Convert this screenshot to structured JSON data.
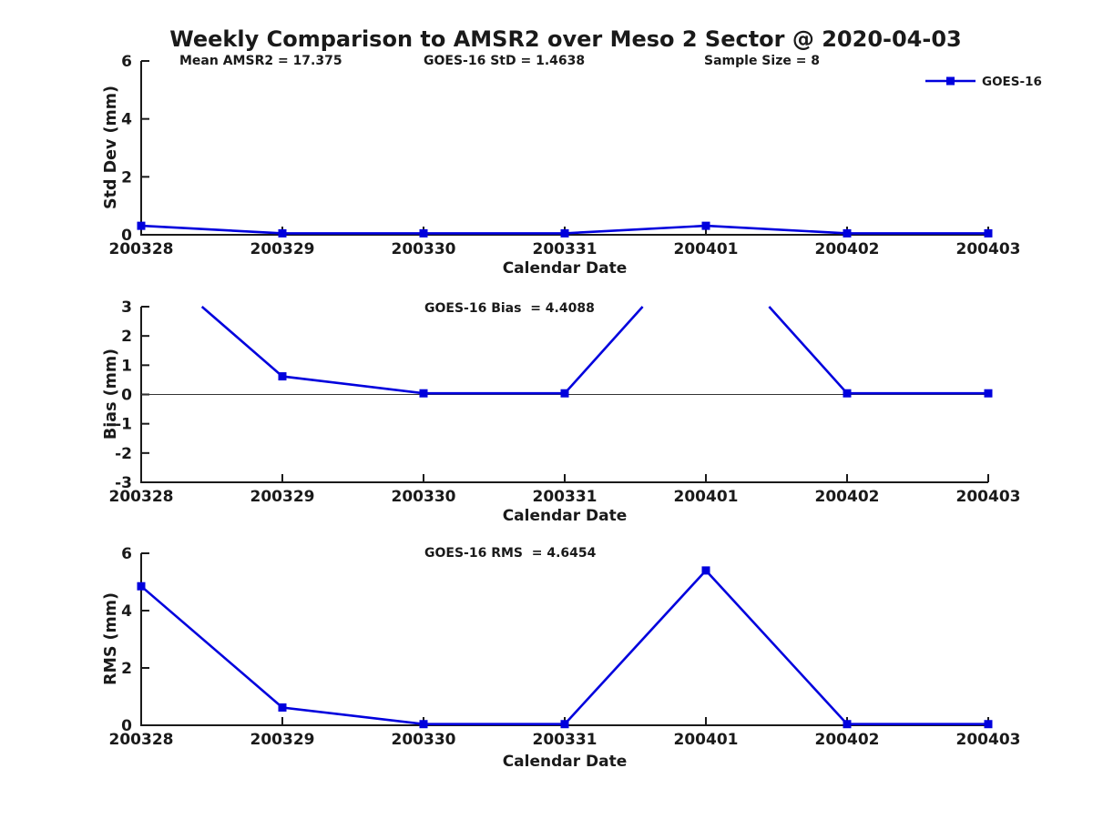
{
  "title": "Weekly Comparison to AMSR2 over Meso 2 Sector @ 2020-04-03",
  "xlabel": "Calendar Date",
  "legend": {
    "label": "GOES-16"
  },
  "colors": {
    "series": "#0000dd",
    "axis": "#1a1a1a",
    "zero_line": "#333333"
  },
  "chart_data": [
    {
      "type": "line",
      "name": "std-dev",
      "ylabel": "Std Dev (mm)",
      "ylim": [
        0,
        6
      ],
      "yticks": [
        0,
        2,
        4,
        6
      ],
      "categories": [
        "200328",
        "200329",
        "200330",
        "200331",
        "200401",
        "200402",
        "200403"
      ],
      "series": [
        {
          "name": "GOES-16",
          "values": [
            0.31,
            0.05,
            0.05,
            0.05,
            0.31,
            0.05,
            0.05
          ]
        }
      ],
      "annotations": [
        "Mean AMSR2 = 17.375",
        "GOES-16 StD = 1.4638",
        "Sample Size = 8"
      ],
      "zero_line": false,
      "legend_position": "upper right",
      "grid": false
    },
    {
      "type": "line",
      "name": "bias",
      "ylabel": "Bias (mm)",
      "ylim": [
        -3,
        3
      ],
      "yticks": [
        3,
        2,
        1,
        0,
        -1,
        -2,
        -3
      ],
      "categories": [
        "200328",
        "200329",
        "200330",
        "200331",
        "200401",
        "200402",
        "200403"
      ],
      "series": [
        {
          "name": "GOES-16",
          "values": [
            4.8,
            0.62,
            0.04,
            0.04,
            5.4,
            0.04,
            0.04
          ]
        }
      ],
      "annotations": [
        "GOES-16 Bias  = 4.4088"
      ],
      "zero_line": true,
      "clip_note": "values 4.8 and 5.4 exceed ylim and are clipped at y=3",
      "grid": false
    },
    {
      "type": "line",
      "name": "rms",
      "ylabel": "RMS (mm)",
      "ylim": [
        0,
        6
      ],
      "yticks": [
        0,
        2,
        4,
        6
      ],
      "categories": [
        "200328",
        "200329",
        "200330",
        "200331",
        "200401",
        "200402",
        "200403"
      ],
      "series": [
        {
          "name": "GOES-16",
          "values": [
            4.85,
            0.62,
            0.04,
            0.04,
            5.4,
            0.04,
            0.04
          ]
        }
      ],
      "annotations": [
        "GOES-16 RMS  = 4.6454"
      ],
      "zero_line": false,
      "grid": false
    }
  ]
}
